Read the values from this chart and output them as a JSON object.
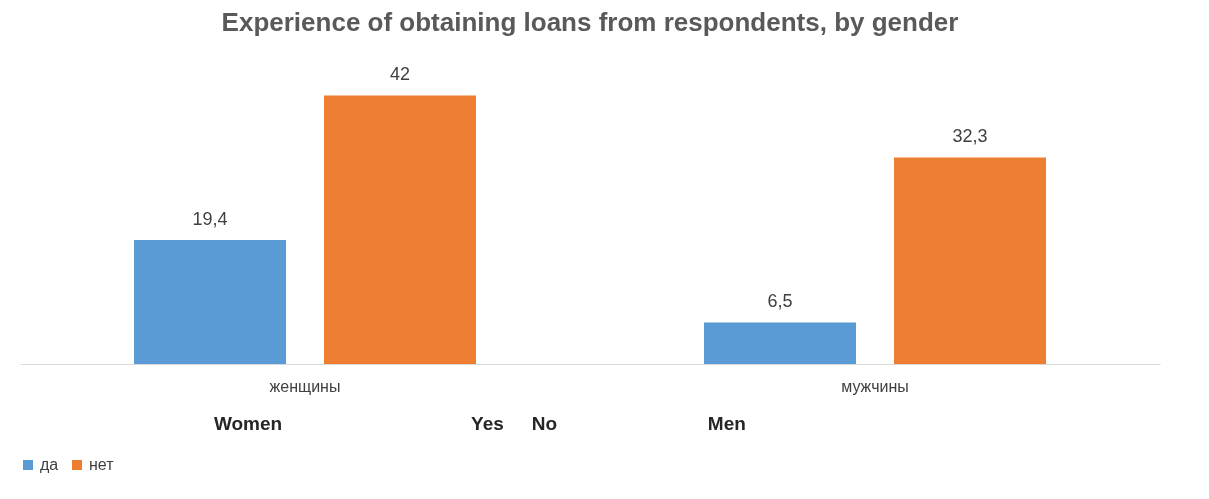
{
  "chart_data": {
    "type": "bar",
    "title": "Experience of obtaining loans from respondents, by gender",
    "categories": [
      "женщины",
      "мужчины"
    ],
    "series": [
      {
        "name": "да",
        "color": "#5b9bd5",
        "values": [
          19.4,
          6.5
        ],
        "value_labels": [
          "19,4",
          "6,5"
        ]
      },
      {
        "name": "нет",
        "color": "#ed7d31",
        "values": [
          42,
          32.3
        ],
        "value_labels": [
          "42",
          "32,3"
        ]
      }
    ],
    "legend": "bottom",
    "grid": false,
    "annotations": [
      "Women",
      "Yes",
      "No",
      "Men"
    ]
  }
}
